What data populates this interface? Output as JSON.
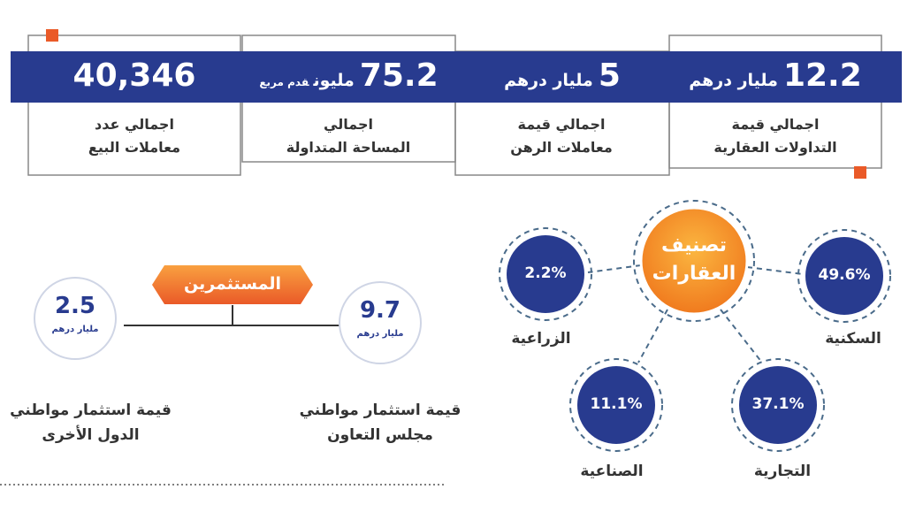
{
  "stats": [
    {
      "value": "40,346",
      "label_line1": "اجمالي عدد",
      "label_line2": "معاملات البيع"
    },
    {
      "value": "75.2",
      "unit": "مليون",
      "subunit": "قدم مربع",
      "label_line1": "اجمالي",
      "label_line2": "المساحة المتداولة"
    },
    {
      "value": "5",
      "unit": "مليار درهم",
      "label_line1": "اجمالي قيمة",
      "label_line2": "معاملات الرهن"
    },
    {
      "value": "12.2",
      "unit": "مليار درهم",
      "label_line1": "اجمالي قيمة",
      "label_line2": "التداولات العقارية"
    }
  ],
  "classification": {
    "title_line1": "تصنيف",
    "title_line2": "العقارات",
    "nodes": [
      {
        "value": "49.6%",
        "label": "السكنية"
      },
      {
        "value": "37.1%",
        "label": "التجارية"
      },
      {
        "value": "11.1%",
        "label": "الصناعية"
      },
      {
        "value": "2.2%",
        "label": "الزراعية"
      }
    ]
  },
  "investors": {
    "title": "المستثمرين",
    "items": [
      {
        "value": "9.7",
        "unit": "مليار درهم",
        "label_line1": "قيمة استثمار مواطني",
        "label_line2": "مجلس التعاون"
      },
      {
        "value": "2.5",
        "unit": "مليار درهم",
        "label_line1": "قيمة استثمار مواطني",
        "label_line2": "الدول الأخرى"
      }
    ]
  }
}
